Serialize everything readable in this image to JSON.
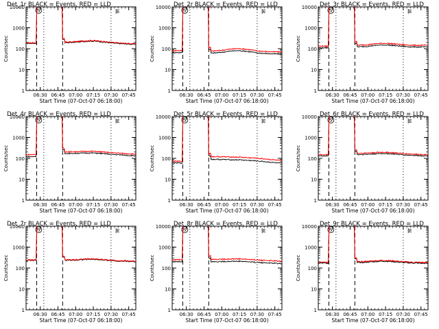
{
  "chart_data": {
    "type": "line",
    "layout": "3x3 grid of log-scale time series",
    "series_colors": {
      "events": "#000000",
      "lld": "#ff0000"
    },
    "ylabel": "Counts/sec",
    "xlabel": "Start Time (07-Oct-07 06:18:00)",
    "x_unit": "minutes after 06:18",
    "xlim": [
      0,
      93
    ],
    "ylim": [
      1,
      10000
    ],
    "y_ticks": [
      {
        "v": 1,
        "label": "1"
      },
      {
        "v": 10,
        "label": "10"
      },
      {
        "v": 100,
        "label": "100"
      },
      {
        "v": 1000,
        "label": "1000"
      },
      {
        "v": 10000,
        "label": "10000"
      }
    ],
    "x_ticks": [
      {
        "v": 12,
        "label": "06:30"
      },
      {
        "v": 27,
        "label": "06:45"
      },
      {
        "v": 42,
        "label": "07:00"
      },
      {
        "v": 57,
        "label": "07:15"
      },
      {
        "v": 72,
        "label": "07:30"
      },
      {
        "v": 87,
        "label": "07:45"
      }
    ],
    "markers": {
      "dashed": [
        9,
        31
      ],
      "dotted": [
        15,
        72
      ],
      "S_at": 9.5,
      "S_label": "S",
      "E_at": 78,
      "E_label": "E"
    },
    "panels": [
      {
        "title": "Det_1r BLACK = Events, RED = LLD",
        "base": 180,
        "peak": 15000,
        "lld_ratio": 1.06,
        "lld_tail_ratio": 1.06,
        "peak_end": 28,
        "quiet": 190,
        "bump": 230,
        "tail": 160,
        "title_pos": "left"
      },
      {
        "title": "Det_2r BLACK = Events, RED = LLD",
        "base": 65,
        "peak": 15000,
        "lld_ratio": 1.25,
        "lld_tail_ratio": 1.25,
        "peak_end": 30,
        "quiet": 60,
        "bump": 80,
        "tail": 55,
        "title_pos": "center"
      },
      {
        "title": "Det_3r BLACK = Events, RED = LLD",
        "base": 110,
        "peak": 15000,
        "lld_ratio": 1.2,
        "lld_tail_ratio": 1.2,
        "peak_end": 30,
        "quiet": 120,
        "bump": 150,
        "tail": 120,
        "title_pos": "center"
      },
      {
        "title": "Det_4r BLACK = Events, RED = LLD",
        "base": 120,
        "peak": 15000,
        "lld_ratio": 1.25,
        "lld_tail_ratio": 1.2,
        "peak_end": 29,
        "quiet": 170,
        "bump": 180,
        "tail": 130,
        "title_pos": "left"
      },
      {
        "title": "Det_5r BLACK = Events, RED = LLD",
        "base": 60,
        "peak": 15000,
        "lld_ratio": 1.2,
        "lld_tail_ratio": 1.35,
        "peak_end": 30,
        "quiet": 90,
        "bump": 85,
        "tail": 55,
        "title_pos": "center"
      },
      {
        "title": "Det_6r BLACK = Events, RED = LLD",
        "base": 130,
        "peak": 15000,
        "lld_ratio": 1.15,
        "lld_tail_ratio": 1.15,
        "peak_end": 30,
        "quiet": 150,
        "bump": 170,
        "tail": 130,
        "title_pos": "center"
      },
      {
        "title": "Det_7r BLACK = Events, RED = LLD",
        "base": 230,
        "peak": 15000,
        "lld_ratio": 1.05,
        "lld_tail_ratio": 1.05,
        "peak_end": 28,
        "quiet": 230,
        "bump": 260,
        "tail": 200,
        "title_pos": "left"
      },
      {
        "title": "Det_8r BLACK = Events, RED = LLD",
        "base": 200,
        "peak": 15000,
        "lld_ratio": 1.25,
        "lld_tail_ratio": 1.3,
        "peak_end": 30,
        "quiet": 200,
        "bump": 210,
        "tail": 160,
        "title_pos": "center"
      },
      {
        "title": "Det_9r BLACK = Events, RED = LLD",
        "base": 170,
        "peak": 15000,
        "lld_ratio": 1.1,
        "lld_tail_ratio": 1.1,
        "peak_end": 30,
        "quiet": 180,
        "bump": 210,
        "tail": 165,
        "title_pos": "center"
      }
    ]
  }
}
